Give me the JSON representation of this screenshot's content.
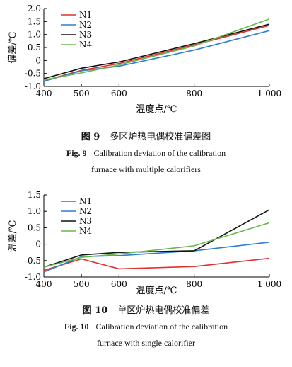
{
  "chart_data": [
    {
      "type": "line",
      "x": [
        400,
        500,
        600,
        800,
        1000
      ],
      "xticklabels": [
        "400",
        "500",
        "600",
        "800",
        "1 000"
      ],
      "xlabel": "温度点/℃",
      "ylabel": "偏差/℃",
      "ylim": [
        -1.0,
        2.0
      ],
      "yticks": [
        "-1.0",
        "-0.5",
        "0",
        "0.5",
        "1.0",
        "1.5",
        "2.0"
      ],
      "legend": "top-left",
      "grid": false,
      "series": [
        {
          "name": "N1",
          "color": "#e03030",
          "values": [
            -0.78,
            -0.38,
            -0.12,
            0.6,
            1.35
          ]
        },
        {
          "name": "N2",
          "color": "#2f7fd0",
          "values": [
            -0.8,
            -0.4,
            -0.22,
            0.4,
            1.15
          ]
        },
        {
          "name": "N3",
          "color": "#111111",
          "values": [
            -0.7,
            -0.3,
            -0.06,
            0.65,
            1.4
          ]
        },
        {
          "name": "N4",
          "color": "#66b84a",
          "values": [
            -0.75,
            -0.48,
            -0.17,
            0.56,
            1.6
          ]
        }
      ]
    },
    {
      "type": "line",
      "x": [
        400,
        500,
        600,
        800,
        1000
      ],
      "xticklabels": [
        "400",
        "500",
        "600",
        "800",
        "1 000"
      ],
      "xlabel": "温度点/℃",
      "ylabel": "温差/℃",
      "ylim": [
        -1.0,
        1.5
      ],
      "yticks": [
        "-1.0",
        "-0.5",
        "0",
        "0.5",
        "1.0",
        "1.5"
      ],
      "legend": "top-left",
      "grid": false,
      "series": [
        {
          "name": "N1",
          "color": "#e03030",
          "values": [
            -0.8,
            -0.45,
            -0.75,
            -0.68,
            -0.43
          ]
        },
        {
          "name": "N2",
          "color": "#2f7fd0",
          "values": [
            -0.85,
            -0.38,
            -0.35,
            -0.2,
            0.06
          ]
        },
        {
          "name": "N3",
          "color": "#111111",
          "values": [
            -0.7,
            -0.33,
            -0.25,
            -0.2,
            1.05
          ]
        },
        {
          "name": "N4",
          "color": "#66b84a",
          "values": [
            -0.7,
            -0.4,
            -0.3,
            -0.05,
            0.65
          ]
        }
      ]
    }
  ],
  "captions": [
    {
      "num_cn": "图 9",
      "title_cn": "多区炉热电偶校准偏差图",
      "num_en": "Fig. 9",
      "line1_en": "Calibration deviation of the calibration",
      "line2_en": "furnace with multiple calorifiers"
    },
    {
      "num_cn": "图 10",
      "title_cn": "单区炉热电偶校准偏差",
      "num_en": "Fig. 10",
      "line1_en": "Calibration deviation of the calibration",
      "line2_en": "furnace with single calorifier"
    }
  ]
}
